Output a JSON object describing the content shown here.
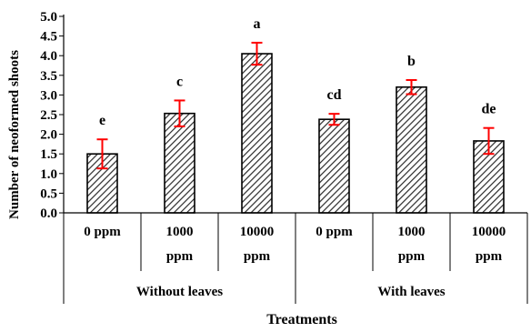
{
  "chart_data": {
    "type": "bar",
    "xlabel": "Treatments",
    "ylabel": "Number of neoformed shoots",
    "ylim": [
      0,
      5
    ],
    "yticks": [
      "0.0",
      "0.5",
      "1.0",
      "1.5",
      "2.0",
      "2.5",
      "3.0",
      "3.5",
      "4.0",
      "4.5",
      "5.0"
    ],
    "grid": false,
    "legend": "none",
    "bar_fill": "#2b2b2b",
    "error_color": "#ff0000",
    "groups": [
      {
        "label": "Without leaves",
        "start": 0,
        "end": 2
      },
      {
        "label": "With leaves",
        "start": 3,
        "end": 5
      }
    ],
    "categories": [
      {
        "line1": "0 ppm",
        "line2": ""
      },
      {
        "line1": "1000",
        "line2": "ppm"
      },
      {
        "line1": "10000",
        "line2": "ppm"
      },
      {
        "line1": "0 ppm",
        "line2": ""
      },
      {
        "line1": "1000",
        "line2": "ppm"
      },
      {
        "line1": "10000",
        "line2": "ppm"
      }
    ],
    "values": [
      1.5,
      2.53,
      4.05,
      2.38,
      3.2,
      1.83
    ],
    "errors": [
      0.37,
      0.33,
      0.28,
      0.14,
      0.18,
      0.33
    ],
    "letters": [
      "e",
      "c",
      "a",
      "cd",
      "b",
      "de"
    ]
  }
}
